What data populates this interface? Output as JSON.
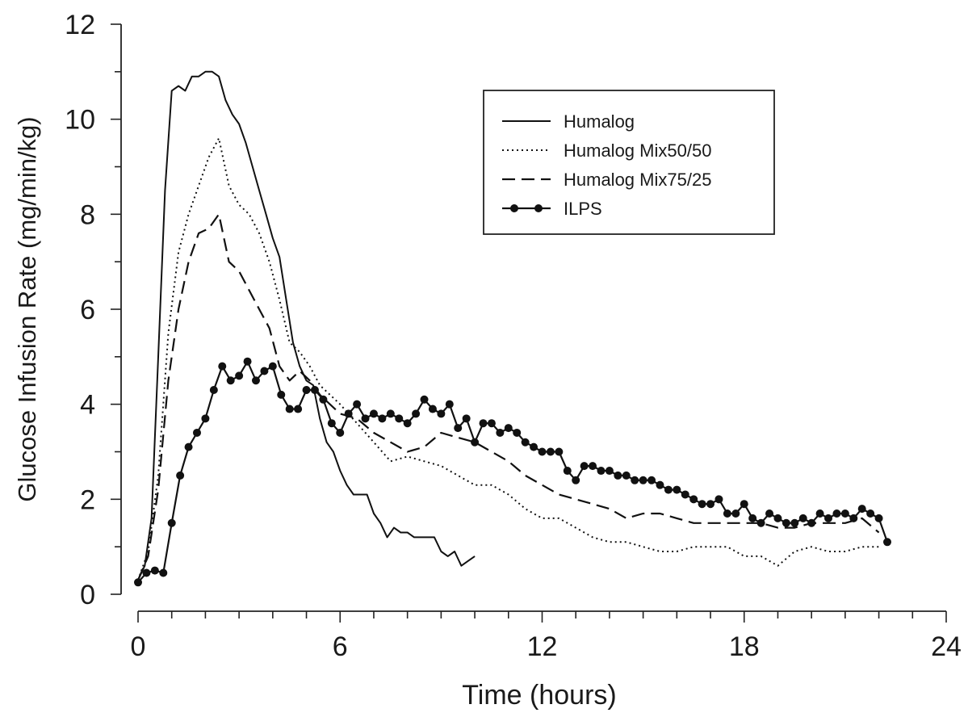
{
  "chart_data": {
    "type": "line",
    "xlabel": "Time (hours)",
    "ylabel": "Glucose Infusion Rate (mg/min/kg)",
    "xlim": [
      0,
      24
    ],
    "ylim": [
      0,
      12
    ],
    "xticks": [
      0,
      6,
      12,
      18,
      24
    ],
    "yticks": [
      0,
      2,
      4,
      6,
      8,
      10,
      12
    ],
    "grid": false,
    "legend_position": "top-right",
    "series": [
      {
        "name": "Humalog",
        "style": "solid",
        "x": [
          0,
          0.2,
          0.4,
          0.6,
          0.8,
          1.0,
          1.2,
          1.4,
          1.6,
          1.8,
          2.0,
          2.2,
          2.4,
          2.6,
          2.8,
          3.0,
          3.2,
          3.4,
          3.6,
          3.8,
          4.0,
          4.2,
          4.4,
          4.6,
          4.8,
          5.0,
          5.2,
          5.4,
          5.6,
          5.8,
          6.0,
          6.2,
          6.4,
          6.6,
          6.8,
          7.0,
          7.2,
          7.4,
          7.6,
          7.8,
          8.0,
          8.2,
          8.4,
          8.6,
          8.8,
          9.0,
          9.2,
          9.4,
          9.6,
          9.8,
          10.0
        ],
        "values": [
          0.3,
          0.6,
          1.6,
          5.0,
          8.5,
          10.6,
          10.7,
          10.6,
          10.9,
          10.9,
          11.0,
          11.0,
          10.9,
          10.4,
          10.1,
          9.9,
          9.5,
          9.0,
          8.5,
          8.0,
          7.5,
          7.1,
          6.2,
          5.3,
          4.8,
          4.5,
          4.4,
          3.7,
          3.2,
          3.0,
          2.6,
          2.3,
          2.1,
          2.1,
          2.1,
          1.7,
          1.5,
          1.2,
          1.4,
          1.3,
          1.3,
          1.2,
          1.2,
          1.2,
          1.2,
          0.9,
          0.8,
          0.9,
          0.6,
          0.7,
          0.8
        ]
      },
      {
        "name": "Humalog Mix50/50",
        "style": "dotted",
        "x": [
          0,
          0.3,
          0.6,
          0.9,
          1.2,
          1.5,
          1.8,
          2.1,
          2.4,
          2.7,
          3.0,
          3.3,
          3.6,
          3.9,
          4.2,
          4.5,
          4.8,
          5.1,
          5.4,
          5.7,
          6.0,
          6.5,
          7.0,
          7.5,
          8.0,
          8.5,
          9.0,
          9.5,
          10.0,
          10.5,
          11.0,
          11.5,
          12.0,
          12.5,
          13.0,
          13.5,
          14.0,
          14.5,
          15.0,
          15.5,
          16.0,
          16.5,
          17.0,
          17.5,
          18.0,
          18.5,
          19.0,
          19.5,
          20.0,
          20.5,
          21.0,
          21.5,
          22.0
        ],
        "values": [
          0.3,
          0.9,
          2.5,
          5.5,
          7.2,
          8.0,
          8.6,
          9.2,
          9.6,
          8.6,
          8.2,
          8.0,
          7.6,
          7.0,
          6.2,
          5.3,
          5.1,
          4.8,
          4.4,
          4.2,
          4.0,
          3.6,
          3.2,
          2.8,
          2.9,
          2.8,
          2.7,
          2.5,
          2.3,
          2.3,
          2.1,
          1.8,
          1.6,
          1.6,
          1.4,
          1.2,
          1.1,
          1.1,
          1.0,
          0.9,
          0.9,
          1.0,
          1.0,
          1.0,
          0.8,
          0.8,
          0.6,
          0.9,
          1.0,
          0.9,
          0.9,
          1.0,
          1.0
        ]
      },
      {
        "name": "Humalog Mix75/25",
        "style": "dashed",
        "x": [
          0,
          0.3,
          0.6,
          0.9,
          1.2,
          1.5,
          1.8,
          2.1,
          2.4,
          2.7,
          3.0,
          3.3,
          3.6,
          3.9,
          4.2,
          4.5,
          4.8,
          5.1,
          5.4,
          5.7,
          6.0,
          6.5,
          7.0,
          7.5,
          8.0,
          8.5,
          9.0,
          9.5,
          10.0,
          10.5,
          11.0,
          11.5,
          12.0,
          12.5,
          13.0,
          13.5,
          14.0,
          14.5,
          15.0,
          15.5,
          16.0,
          16.5,
          17.0,
          17.5,
          18.0,
          18.5,
          19.0,
          19.5,
          20.0,
          20.5,
          21.0,
          21.5,
          22.0
        ],
        "values": [
          0.3,
          0.8,
          2.2,
          4.5,
          6.0,
          7.0,
          7.6,
          7.7,
          8.0,
          7.0,
          6.8,
          6.4,
          6.0,
          5.6,
          4.8,
          4.5,
          4.7,
          4.5,
          4.2,
          4.0,
          3.8,
          3.7,
          3.4,
          3.2,
          3.0,
          3.1,
          3.4,
          3.3,
          3.2,
          3.0,
          2.8,
          2.5,
          2.3,
          2.1,
          2.0,
          1.9,
          1.8,
          1.6,
          1.7,
          1.7,
          1.6,
          1.5,
          1.5,
          1.5,
          1.5,
          1.5,
          1.4,
          1.4,
          1.5,
          1.5,
          1.5,
          1.6,
          1.3
        ]
      },
      {
        "name": "ILPS",
        "style": "solid-markers",
        "x": [
          0,
          0.25,
          0.5,
          0.75,
          1.0,
          1.25,
          1.5,
          1.75,
          2.0,
          2.25,
          2.5,
          2.75,
          3.0,
          3.25,
          3.5,
          3.75,
          4.0,
          4.25,
          4.5,
          4.75,
          5.0,
          5.25,
          5.5,
          5.75,
          6.0,
          6.25,
          6.5,
          6.75,
          7.0,
          7.25,
          7.5,
          7.75,
          8.0,
          8.25,
          8.5,
          8.75,
          9.0,
          9.25,
          9.5,
          9.75,
          10.0,
          10.25,
          10.5,
          10.75,
          11.0,
          11.25,
          11.5,
          11.75,
          12.0,
          12.25,
          12.5,
          12.75,
          13.0,
          13.25,
          13.5,
          13.75,
          14.0,
          14.25,
          14.5,
          14.75,
          15.0,
          15.25,
          15.5,
          15.75,
          16.0,
          16.25,
          16.5,
          16.75,
          17.0,
          17.25,
          17.5,
          17.75,
          18.0,
          18.25,
          18.5,
          18.75,
          19.0,
          19.25,
          19.5,
          19.75,
          20.0,
          20.25,
          20.5,
          20.75,
          21.0,
          21.25,
          21.5,
          21.75,
          22.0,
          22.25
        ],
        "values": [
          0.25,
          0.45,
          0.5,
          0.45,
          1.5,
          2.5,
          3.1,
          3.4,
          3.7,
          4.3,
          4.8,
          4.5,
          4.6,
          4.9,
          4.5,
          4.7,
          4.8,
          4.2,
          3.9,
          3.9,
          4.3,
          4.3,
          4.1,
          3.6,
          3.4,
          3.8,
          4.0,
          3.7,
          3.8,
          3.7,
          3.8,
          3.7,
          3.6,
          3.8,
          4.1,
          3.9,
          3.8,
          4.0,
          3.5,
          3.7,
          3.2,
          3.6,
          3.6,
          3.4,
          3.5,
          3.4,
          3.2,
          3.1,
          3.0,
          3.0,
          3.0,
          2.6,
          2.4,
          2.7,
          2.7,
          2.6,
          2.6,
          2.5,
          2.5,
          2.4,
          2.4,
          2.4,
          2.3,
          2.2,
          2.2,
          2.1,
          2.0,
          1.9,
          1.9,
          2.0,
          1.7,
          1.7,
          1.9,
          1.6,
          1.5,
          1.7,
          1.6,
          1.5,
          1.5,
          1.6,
          1.5,
          1.7,
          1.6,
          1.7,
          1.7,
          1.6,
          1.8,
          1.7,
          1.6,
          1.1
        ]
      }
    ]
  }
}
